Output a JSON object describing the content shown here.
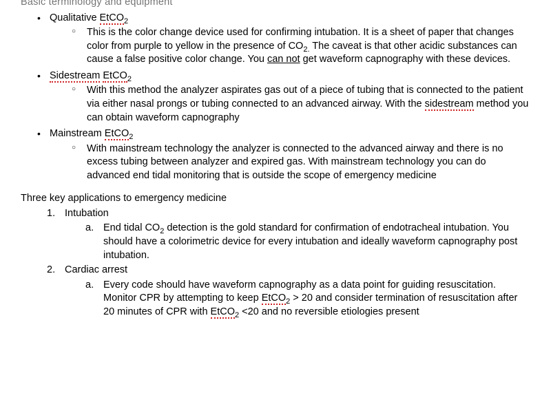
{
  "header_cut": "Basic terminology and equipment",
  "top": [
    {
      "label_pre": "Qualitative ",
      "label_spell": "EtCO",
      "label_sub": "2",
      "para": {
        "t1": "This is the color change device used for confirming intubation. It is a sheet of paper that changes color from purple to yellow in the presence of CO",
        "s1": "2.",
        "t2": " The caveat is that other acidic substances can cause a false positive color change. You ",
        "u1": "can not",
        "t3": " get waveform capnography with these devices."
      }
    },
    {
      "label_spell1": "Sidestream",
      "label_mid": " ",
      "label_spell2": "EtCO",
      "label_sub": "2",
      "para": {
        "t1": "With this method the analyzer aspirates gas out of a piece of tubing that is connected to the patient via either nasal prongs or tubing connected to an advanced airway. With the ",
        "sp1": "sidestream",
        "t2": " method you can obtain waveform capnography"
      }
    },
    {
      "label_pre": "Mainstream ",
      "label_spell": "EtCO",
      "label_sub": "2",
      "para": {
        "t1": "With mainstream technology the analyzer is connected to the advanced airway and there is no excess tubing between analyzer and expired gas. With mainstream technology you can do advanced end tidal monitoring that is outside the scope of emergency medicine"
      }
    }
  ],
  "section2_title": "Three key applications to emergency medicine",
  "apps": [
    {
      "num": "1.",
      "label": "Intubation",
      "alpha": "a.",
      "para": {
        "t1": "End tidal CO",
        "s1": "2",
        "t2": " detection is the gold standard for confirmation of endotracheal intubation. You should have a colorimetric device for every intubation and ideally waveform capnography post intubation."
      }
    },
    {
      "num": "2.",
      "label": "Cardiac arrest",
      "alpha": "a.",
      "para": {
        "t1": "Every code should have waveform capnography as a data point for guiding resuscitation. Monitor CPR by attempting to keep ",
        "sp1": "EtCO",
        "s1": "2",
        "t2": " > 20 and consider termination of resuscitation after 20 minutes of CPR with ",
        "sp2": "EtCO",
        "s2": "2",
        "t3": " <20 and no reversible etiologies present"
      }
    }
  ]
}
